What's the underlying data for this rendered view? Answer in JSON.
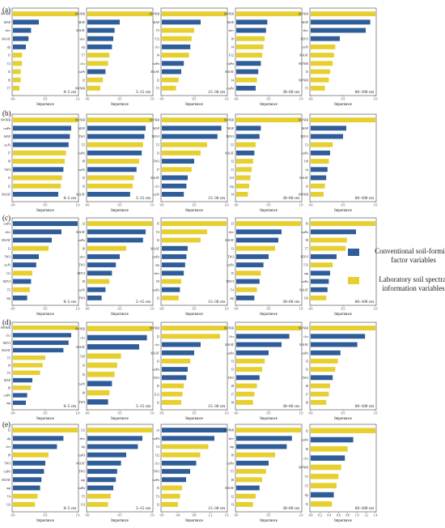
{
  "legend": {
    "conventional": {
      "label": "Conventional soil-forming factor variables",
      "color": "#2f5d99"
    },
    "laboratory": {
      "label": "Laboratory soil spectral information variables",
      "color": "#e6cf2e"
    }
  },
  "common": {
    "xlabel": "Importance",
    "xticks": [
      0.0,
      0.5,
      1.0
    ]
  },
  "rows": [
    {
      "label": "(a)"
    },
    {
      "label": "(b)"
    },
    {
      "label": "(c)"
    },
    {
      "label": "(d)"
    },
    {
      "label": "(e)"
    }
  ],
  "chart_data": [
    {
      "type": "bar",
      "row": 0,
      "depth": "0–5 cm",
      "xlim": [
        0,
        1
      ],
      "xlabel": "Importance",
      "categories": [
        "SWNIR",
        "MAP",
        "elev",
        "MAAT",
        "slp",
        "I1",
        "T2",
        "I3",
        "I9",
        "T7"
      ],
      "values": [
        1.0,
        0.4,
        0.28,
        0.24,
        0.2,
        0.14,
        0.14,
        0.12,
        0.12,
        0.1
      ],
      "kinds": [
        "lab",
        "conv",
        "conv",
        "conv",
        "conv",
        "lab",
        "lab",
        "lab",
        "lab",
        "lab"
      ]
    },
    {
      "type": "bar",
      "row": 0,
      "depth": "5–15 cm",
      "xlim": [
        0,
        1
      ],
      "xlabel": "Importance",
      "categories": [
        "SWNIR",
        "MAP",
        "MAAT",
        "elev",
        "slp",
        "T7",
        "clcr",
        "curPr",
        "I2",
        "SWNIR"
      ],
      "values": [
        1.0,
        0.5,
        0.42,
        0.4,
        0.38,
        0.34,
        0.32,
        0.28,
        0.24,
        0.2
      ],
      "kinds": [
        "lab",
        "conv",
        "conv",
        "conv",
        "conv",
        "lab",
        "lab",
        "conv",
        "lab",
        "lab"
      ]
    },
    {
      "type": "bar",
      "row": 0,
      "depth": "15–30 cm",
      "xlim": [
        0,
        1
      ],
      "xlabel": "Importance",
      "categories": [
        "SWNIR",
        "MAP",
        "T5",
        "T12",
        "clcr",
        "I4",
        "curPn",
        "MAAT",
        "I2",
        "T5"
      ],
      "values": [
        1.0,
        0.6,
        0.5,
        0.46,
        0.44,
        0.42,
        0.34,
        0.3,
        0.26,
        0.22
      ],
      "kinds": [
        "lab",
        "conv",
        "lab",
        "lab",
        "conv",
        "lab",
        "conv",
        "conv",
        "lab",
        "lab"
      ]
    },
    {
      "type": "bar",
      "row": 0,
      "depth": "30–60 cm",
      "xlim": [
        0,
        1
      ],
      "xlabel": "Importance",
      "categories": [
        "SWNIR",
        "MAP",
        "elev",
        "I8",
        "I4",
        "E12",
        "curPn",
        "MAAT",
        "I4",
        "curPn"
      ],
      "values": [
        1.0,
        0.48,
        0.46,
        0.44,
        0.42,
        0.4,
        0.38,
        0.34,
        0.32,
        0.3
      ],
      "kinds": [
        "lab",
        "conv",
        "conv",
        "lab",
        "lab",
        "lab",
        "conv",
        "conv",
        "lab",
        "conv"
      ]
    },
    {
      "type": "bar",
      "row": 0,
      "depth": "60–100 cm",
      "xlim": [
        0,
        1
      ],
      "xlabel": "Importance",
      "categories": [
        "SWNIR",
        "MAP",
        "elev",
        "NDVI",
        "curPr",
        "MAAT",
        "SWNIR",
        "I3",
        "SWNIR",
        "T5"
      ],
      "values": [
        1.0,
        0.92,
        0.85,
        0.45,
        0.38,
        0.36,
        0.34,
        0.3,
        0.28,
        0.22
      ],
      "kinds": [
        "lab",
        "conv",
        "conv",
        "conv",
        "lab",
        "lab",
        "lab",
        "lab",
        "lab",
        "lab"
      ]
    },
    {
      "type": "bar",
      "row": 1,
      "depth": "0–5 cm",
      "xlim": [
        0,
        1
      ],
      "xlabel": "Importance",
      "categories": [
        "SWNIR",
        "curPn",
        "MAP",
        "curPr",
        "I7",
        "I8",
        "TW3",
        "I3",
        "I2",
        "MAAT"
      ],
      "values": [
        1.0,
        0.9,
        0.88,
        0.86,
        0.82,
        0.8,
        0.78,
        0.76,
        0.74,
        0.7
      ],
      "kinds": [
        "lab",
        "conv",
        "conv",
        "conv",
        "lab",
        "lab",
        "conv",
        "lab",
        "lab",
        "conv"
      ]
    },
    {
      "type": "bar",
      "row": 1,
      "depth": "5–15 cm",
      "xlim": [
        0,
        1
      ],
      "xlabel": "Importance",
      "categories": [
        "SWNIR",
        "MAP",
        "TW3",
        "T5",
        "curPn",
        "I8",
        "curPr",
        "I2",
        "I2",
        "MAAT"
      ],
      "values": [
        1.0,
        0.9,
        0.88,
        0.86,
        0.84,
        0.8,
        0.76,
        0.72,
        0.7,
        0.66
      ],
      "kinds": [
        "lab",
        "conv",
        "conv",
        "lab",
        "conv",
        "lab",
        "conv",
        "lab",
        "lab",
        "conv"
      ]
    },
    {
      "type": "bar",
      "row": 1,
      "depth": "15–30 cm",
      "xlim": [
        0,
        1
      ],
      "xlabel": "Importance",
      "categories": [
        "SWNIR",
        "MAP",
        "NDVI",
        "T5",
        "I3",
        "TW3",
        "I7",
        "MAAT",
        "clcr",
        "curPr"
      ],
      "values": [
        1.0,
        0.92,
        0.86,
        0.7,
        0.6,
        0.5,
        0.46,
        0.4,
        0.38,
        0.34
      ],
      "kinds": [
        "lab",
        "conv",
        "conv",
        "lab",
        "lab",
        "conv",
        "lab",
        "conv",
        "conv",
        "conv"
      ]
    },
    {
      "type": "bar",
      "row": 1,
      "depth": "30–60 cm",
      "xlim": [
        0,
        1
      ],
      "xlabel": "Importance",
      "categories": [
        "SWNIR",
        "MAP",
        "NDVI",
        "T5",
        "MAAT",
        "I2",
        "I1",
        "I13",
        "mp",
        "I4"
      ],
      "values": [
        1.0,
        0.38,
        0.36,
        0.3,
        0.28,
        0.26,
        0.24,
        0.22,
        0.2,
        0.18
      ],
      "kinds": [
        "lab",
        "conv",
        "conv",
        "lab",
        "conv",
        "lab",
        "lab",
        "lab",
        "lab",
        "lab"
      ]
    },
    {
      "type": "bar",
      "row": 1,
      "depth": "60–100 cm",
      "xlim": [
        0,
        1
      ],
      "xlabel": "Importance",
      "categories": [
        "SWNIR",
        "MAP",
        "NDVI",
        "T3",
        "curPn",
        "I18",
        "clr",
        "MAAT",
        "I3",
        "SWNIR"
      ],
      "values": [
        1.0,
        0.55,
        0.5,
        0.34,
        0.3,
        0.28,
        0.26,
        0.24,
        0.22,
        0.2
      ],
      "kinds": [
        "lab",
        "conv",
        "conv",
        "lab",
        "conv",
        "lab",
        "conv",
        "conv",
        "lab",
        "lab"
      ]
    },
    {
      "type": "bar",
      "row": 2,
      "depth": "0–5 cm",
      "xlim": [
        0,
        1
      ],
      "xlabel": "Importance",
      "categories": [
        "curPn",
        "elev",
        "MAAT",
        "I3",
        "TW3",
        "curPr",
        "I11",
        "NDVI",
        "T5",
        "asp"
      ],
      "values": [
        1.0,
        0.75,
        0.6,
        0.55,
        0.4,
        0.36,
        0.3,
        0.28,
        0.26,
        0.22
      ],
      "kinds": [
        "conv",
        "conv",
        "conv",
        "lab",
        "conv",
        "conv",
        "lab",
        "conv",
        "lab",
        "conv"
      ]
    },
    {
      "type": "bar",
      "row": 2,
      "depth": "5–15 cm",
      "xlim": [
        0,
        1
      ],
      "xlabel": "Importance",
      "categories": [
        "I2",
        "MAAT",
        "curPn",
        "I8",
        "elev",
        "TW3",
        "NDVI",
        "I8",
        "curPr",
        "TW3"
      ],
      "values": [
        1.0,
        0.9,
        0.86,
        0.6,
        0.5,
        0.44,
        0.38,
        0.34,
        0.28,
        0.22
      ],
      "kinds": [
        "lab",
        "conv",
        "conv",
        "lab",
        "conv",
        "conv",
        "conv",
        "lab",
        "conv",
        "conv"
      ]
    },
    {
      "type": "bar",
      "row": 2,
      "depth": "15–30 cm",
      "xlim": [
        0,
        1
      ],
      "xlabel": "Importance",
      "categories": [
        "I5",
        "T4",
        "I3",
        "MAAT",
        "curPn",
        "asp",
        "elev",
        "T8",
        "curPn",
        "I2"
      ],
      "values": [
        1.0,
        0.7,
        0.6,
        0.4,
        0.38,
        0.36,
        0.34,
        0.3,
        0.28,
        0.26
      ],
      "kinds": [
        "lab",
        "lab",
        "lab",
        "conv",
        "conv",
        "conv",
        "conv",
        "lab",
        "conv",
        "lab"
      ]
    },
    {
      "type": "bar",
      "row": 2,
      "depth": "30–60 cm",
      "xlim": [
        0,
        1
      ],
      "xlabel": "Importance",
      "categories": [
        "I3",
        "elev",
        "MAAT",
        "I3",
        "TW3",
        "curPn",
        "I5",
        "NDVI",
        "T4",
        "asp"
      ],
      "values": [
        1.0,
        0.7,
        0.65,
        0.6,
        0.5,
        0.42,
        0.38,
        0.36,
        0.32,
        0.28
      ],
      "kinds": [
        "lab",
        "conv",
        "conv",
        "lab",
        "conv",
        "conv",
        "lab",
        "conv",
        "lab",
        "conv"
      ]
    },
    {
      "type": "bar",
      "row": 2,
      "depth": "60–100 cm",
      "xlim": [
        0,
        1
      ],
      "xlabel": "Importance",
      "categories": [
        "I9",
        "curPn",
        "I8",
        "T7",
        "NDVI",
        "T13",
        "asp",
        "curPn",
        "MAAT",
        "I16"
      ],
      "values": [
        1.0,
        0.7,
        0.56,
        0.54,
        0.4,
        0.34,
        0.3,
        0.28,
        0.26,
        0.24
      ],
      "kinds": [
        "lab",
        "conv",
        "lab",
        "lab",
        "conv",
        "lab",
        "conv",
        "conv",
        "conv",
        "lab"
      ]
    },
    {
      "type": "bar",
      "row": 3,
      "depth": "0–5 cm",
      "xlim": [
        0,
        1
      ],
      "xlabel": "Importance",
      "categories": [
        "SWNIR",
        "clcr",
        "NDVI",
        "MAAT",
        "T5",
        "I4",
        "T5",
        "MAP",
        "I8",
        "curPn",
        "asp"
      ],
      "values": [
        1.0,
        0.9,
        0.86,
        0.78,
        0.5,
        0.46,
        0.42,
        0.3,
        0.28,
        0.22,
        0.2
      ],
      "kinds": [
        "lab",
        "conv",
        "conv",
        "conv",
        "lab",
        "lab",
        "lab",
        "conv",
        "lab",
        "conv",
        "conv"
      ]
    },
    {
      "type": "bar",
      "row": 3,
      "depth": "5–15 cm",
      "xlim": [
        0,
        1
      ],
      "xlabel": "Importance",
      "categories": [
        "SWNIR",
        "clcr",
        "MAAT",
        "T20",
        "I3",
        "I5",
        "curPr",
        "I8",
        "TW3"
      ],
      "values": [
        1.0,
        0.92,
        0.8,
        0.52,
        0.46,
        0.42,
        0.38,
        0.34,
        0.32
      ],
      "kinds": [
        "lab",
        "conv",
        "conv",
        "lab",
        "lab",
        "lab",
        "conv",
        "lab",
        "conv"
      ]
    },
    {
      "type": "bar",
      "row": 3,
      "depth": "15–30 cm",
      "xlim": [
        0,
        1
      ],
      "xlabel": "Importance",
      "categories": [
        "SWNIR",
        "I2",
        "clcr",
        "MAAT",
        "I3",
        "curPn",
        "TW3",
        "I5",
        "E12",
        "I2"
      ],
      "values": [
        1.0,
        0.9,
        0.6,
        0.5,
        0.44,
        0.4,
        0.38,
        0.34,
        0.32,
        0.3
      ],
      "kinds": [
        "lab",
        "lab",
        "conv",
        "conv",
        "lab",
        "conv",
        "conv",
        "lab",
        "lab",
        "lab"
      ]
    },
    {
      "type": "bar",
      "row": 3,
      "depth": "30–60 cm",
      "xlim": [
        0,
        1
      ],
      "xlabel": "Importance",
      "categories": [
        "SWNIR",
        "clcr",
        "MAAT",
        "curPn",
        "I3",
        "I3",
        "TW3",
        "I8",
        "I7",
        "I8"
      ],
      "values": [
        1.0,
        0.82,
        0.7,
        0.5,
        0.44,
        0.4,
        0.36,
        0.32,
        0.28,
        0.26
      ],
      "kinds": [
        "lab",
        "conv",
        "conv",
        "conv",
        "lab",
        "lab",
        "conv",
        "lab",
        "lab",
        "lab"
      ]
    },
    {
      "type": "bar",
      "row": 3,
      "depth": "60–100 cm",
      "xlim": [
        0,
        1
      ],
      "xlabel": "Importance",
      "categories": [
        "SWNIR",
        "clcr",
        "MAAT",
        "curPn",
        "I3",
        "I3",
        "TW3",
        "I8",
        "I7",
        "I8"
      ],
      "values": [
        1.0,
        0.84,
        0.72,
        0.46,
        0.42,
        0.38,
        0.34,
        0.3,
        0.28,
        0.24
      ],
      "kinds": [
        "lab",
        "conv",
        "conv",
        "conv",
        "lab",
        "lab",
        "conv",
        "lab",
        "lab",
        "lab"
      ]
    },
    {
      "type": "bar",
      "row": 4,
      "depth": "0–5 cm",
      "xlim": [
        0,
        1
      ],
      "xlabel": "Importance",
      "categories": [
        "I2",
        "slp",
        "clcr",
        "I8",
        "TW3",
        "curPn",
        "MAAT",
        "asp",
        "T4",
        "I13"
      ],
      "values": [
        1.0,
        0.78,
        0.68,
        0.55,
        0.5,
        0.48,
        0.44,
        0.42,
        0.38,
        0.34
      ],
      "kinds": [
        "lab",
        "conv",
        "conv",
        "lab",
        "conv",
        "conv",
        "conv",
        "conv",
        "lab",
        "lab"
      ]
    },
    {
      "type": "bar",
      "row": 4,
      "depth": "5–15 cm",
      "xlim": [
        0,
        1
      ],
      "xlabel": "Importance",
      "categories": [
        "I12",
        "elev",
        "slp",
        "curPd",
        "MAAT",
        "TW3",
        "asp",
        "curPn",
        "T5",
        "I13"
      ],
      "values": [
        1.0,
        0.85,
        0.78,
        0.6,
        0.52,
        0.46,
        0.44,
        0.4,
        0.36,
        0.32
      ],
      "kinds": [
        "lab",
        "conv",
        "conv",
        "conv",
        "conv",
        "conv",
        "conv",
        "conv",
        "lab",
        "lab"
      ]
    },
    {
      "type": "bar",
      "row": 4,
      "depth": "15–30 cm",
      "xlim": [
        0,
        1.6
      ],
      "xlabel": "Importance",
      "xticks": [
        0.0,
        0.4,
        0.8,
        1.2,
        1.6
      ],
      "categories": [
        "slr",
        "curPd",
        "T4",
        "I12",
        "clcr",
        "TW3",
        "curPn",
        "I5",
        "T3",
        "I2"
      ],
      "values": [
        1.6,
        1.3,
        1.15,
        0.95,
        0.85,
        0.7,
        0.6,
        0.5,
        0.45,
        0.4
      ],
      "kinds": [
        "conv",
        "conv",
        "lab",
        "lab",
        "conv",
        "conv",
        "conv",
        "lab",
        "lab",
        "lab"
      ]
    },
    {
      "type": "bar",
      "row": 4,
      "depth": "30–60 cm",
      "xlim": [
        0,
        1
      ],
      "xlabel": "Importance",
      "categories": [
        "SWNIR",
        "elev",
        "asp",
        "I8",
        "curPn",
        "T5",
        "I8",
        "MAAT",
        "I2",
        "I3"
      ],
      "values": [
        1.0,
        0.86,
        0.78,
        0.6,
        0.5,
        0.46,
        0.4,
        0.36,
        0.3,
        0.26
      ],
      "kinds": [
        "lab",
        "conv",
        "conv",
        "lab",
        "conv",
        "lab",
        "lab",
        "conv",
        "lab",
        "lab"
      ]
    },
    {
      "type": "bar",
      "row": 4,
      "depth": "60–100 cm",
      "xlim": [
        0,
        1.4
      ],
      "xlabel": "Importance",
      "xticks": [
        0.0,
        0.2,
        0.4,
        0.6,
        0.8,
        1.0,
        1.2,
        1.4
      ],
      "categories": [
        "I2",
        "curPn",
        "I8",
        "clcr",
        "SWNIR",
        "T3",
        "T5",
        "slp",
        "I3"
      ],
      "values": [
        1.4,
        0.92,
        0.8,
        0.74,
        0.66,
        0.6,
        0.56,
        0.5,
        0.46
      ],
      "kinds": [
        "lab",
        "conv",
        "lab",
        "conv",
        "lab",
        "lab",
        "lab",
        "conv",
        "lab"
      ]
    }
  ]
}
